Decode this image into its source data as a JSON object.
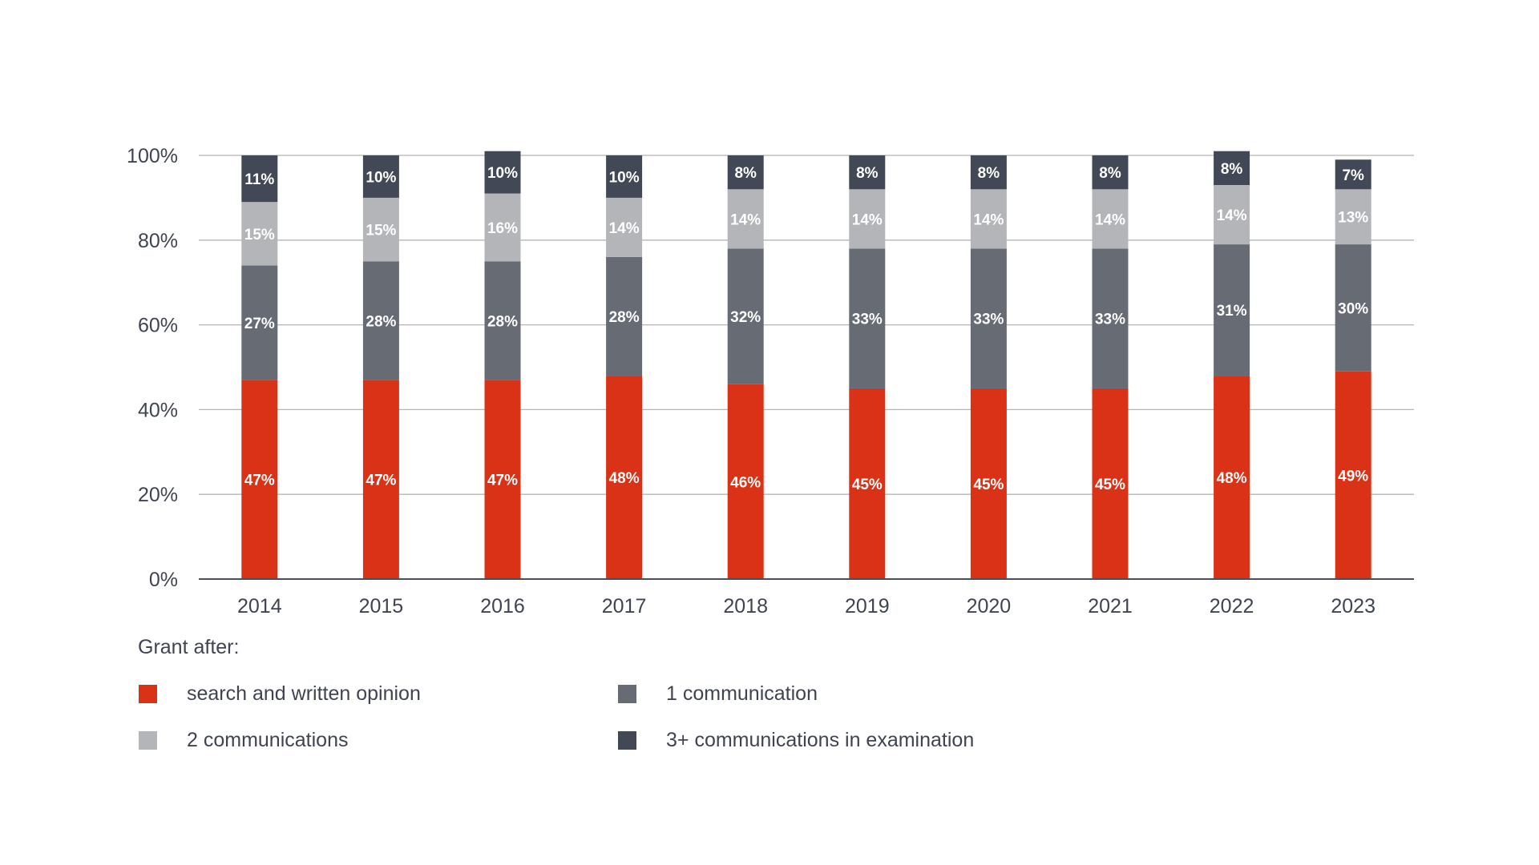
{
  "chart_data": {
    "type": "bar",
    "stacked": true,
    "title": "",
    "xlabel": "",
    "ylabel": "",
    "ylim": [
      0,
      100
    ],
    "yticks": [
      "0%",
      "20%",
      "40%",
      "60%",
      "80%",
      "100%"
    ],
    "ytick_values": [
      0,
      20,
      40,
      60,
      80,
      100
    ],
    "grid": true,
    "categories": [
      "2014",
      "2015",
      "2016",
      "2017",
      "2018",
      "2019",
      "2020",
      "2021",
      "2022",
      "2023"
    ],
    "legend_title": "Grant after:",
    "legend_position": "bottom",
    "series": [
      {
        "name": "search and written opinion",
        "color": "#D93216",
        "values": [
          47,
          47,
          47,
          48,
          46,
          45,
          45,
          45,
          48,
          49
        ],
        "labels": [
          "47%",
          "47%",
          "47%",
          "48%",
          "46%",
          "45%",
          "45%",
          "45%",
          "48%",
          "49%"
        ]
      },
      {
        "name": "1 communication",
        "color": "#666B74",
        "values": [
          27,
          28,
          28,
          28,
          32,
          33,
          33,
          33,
          31,
          30
        ],
        "labels": [
          "27%",
          "28%",
          "28%",
          "28%",
          "32%",
          "33%",
          "33%",
          "33%",
          "31%",
          "30%"
        ]
      },
      {
        "name": "2 communications",
        "color": "#B3B5B9",
        "values": [
          15,
          15,
          16,
          14,
          14,
          14,
          14,
          14,
          14,
          13
        ],
        "labels": [
          "15%",
          "15%",
          "16%",
          "14%",
          "14%",
          "14%",
          "14%",
          "14%",
          "14%",
          "13%"
        ]
      },
      {
        "name": "3+ communications in examination",
        "color": "#424855",
        "values": [
          11,
          10,
          10,
          10,
          8,
          8,
          8,
          8,
          8,
          7
        ],
        "labels": [
          "11%",
          "10%",
          "10%",
          "10%",
          "8%",
          "8%",
          "8%",
          "8%",
          "8%",
          "7%"
        ]
      }
    ]
  },
  "legend": {
    "title": "Grant after:",
    "items": [
      {
        "label": "search and written opinion",
        "color": "#D93216"
      },
      {
        "label": "1 communication",
        "color": "#666B74"
      },
      {
        "label": "2 communications",
        "color": "#B3B5B9"
      },
      {
        "label": "3+ communications in examination",
        "color": "#424855"
      }
    ]
  }
}
